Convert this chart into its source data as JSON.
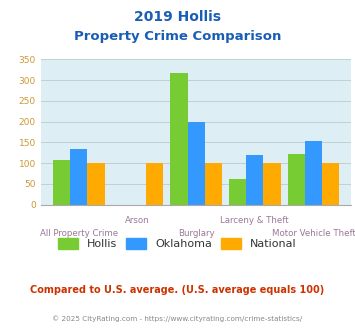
{
  "title_line1": "2019 Hollis",
  "title_line2": "Property Crime Comparison",
  "categories": [
    "All Property Crime",
    "Arson",
    "Burglary",
    "Larceny & Theft",
    "Motor Vehicle Theft"
  ],
  "series": {
    "Hollis": [
      108,
      0,
      318,
      62,
      122
    ],
    "Oklahoma": [
      135,
      0,
      198,
      120,
      153
    ],
    "National": [
      100,
      100,
      100,
      100,
      100
    ]
  },
  "colors": {
    "Hollis": "#77cc33",
    "Oklahoma": "#3399ff",
    "National": "#ffaa00"
  },
  "ylim": [
    0,
    350
  ],
  "yticks": [
    0,
    50,
    100,
    150,
    200,
    250,
    300,
    350
  ],
  "background_color": "#ddeef5",
  "title_color": "#1a5db5",
  "xlabel_upper_color": "#997799",
  "xlabel_lower_color": "#997799",
  "footer_text": "Compared to U.S. average. (U.S. average equals 100)",
  "footer_color": "#cc3300",
  "copyright_text": "© 2025 CityRating.com - https://www.cityrating.com/crime-statistics/",
  "copyright_color": "#888888",
  "ytick_color": "#cc9933"
}
